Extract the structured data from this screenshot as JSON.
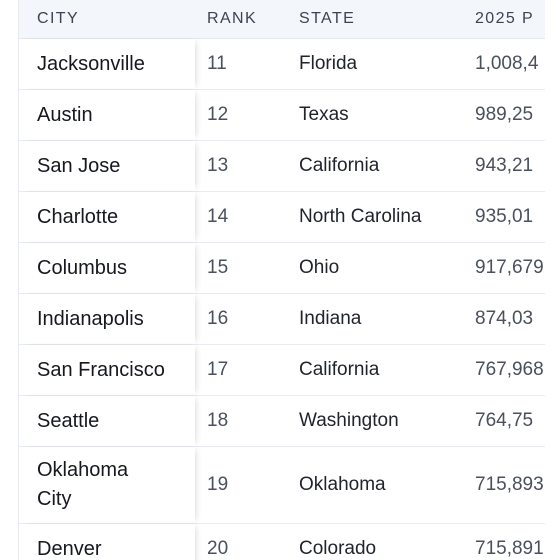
{
  "table": {
    "headers": {
      "city": "CITY",
      "rank": "RANK",
      "state": "STATE",
      "population": "2025 P"
    },
    "rows": [
      {
        "city": "Jacksonville",
        "rank": "11",
        "state": "Florida",
        "population": "1,008,4"
      },
      {
        "city": "Austin",
        "rank": "12",
        "state": "Texas",
        "population": "989,25"
      },
      {
        "city": "San Jose",
        "rank": "13",
        "state": "California",
        "population": "943,21"
      },
      {
        "city": "Charlotte",
        "rank": "14",
        "state": "North Carolina",
        "population": "935,01"
      },
      {
        "city": "Columbus",
        "rank": "15",
        "state": "Ohio",
        "population": "917,679"
      },
      {
        "city": "Indianapolis",
        "rank": "16",
        "state": "Indiana",
        "population": "874,03"
      },
      {
        "city": "San Francisco",
        "rank": "17",
        "state": "California",
        "population": "767,968"
      },
      {
        "city": "Seattle",
        "rank": "18",
        "state": "Washington",
        "population": "764,75"
      },
      {
        "city": "Oklahoma City",
        "rank": "19",
        "state": "Oklahoma",
        "population": "715,893"
      },
      {
        "city": "Denver",
        "rank": "20",
        "state": "Colorado",
        "population": "715,891"
      }
    ]
  }
}
